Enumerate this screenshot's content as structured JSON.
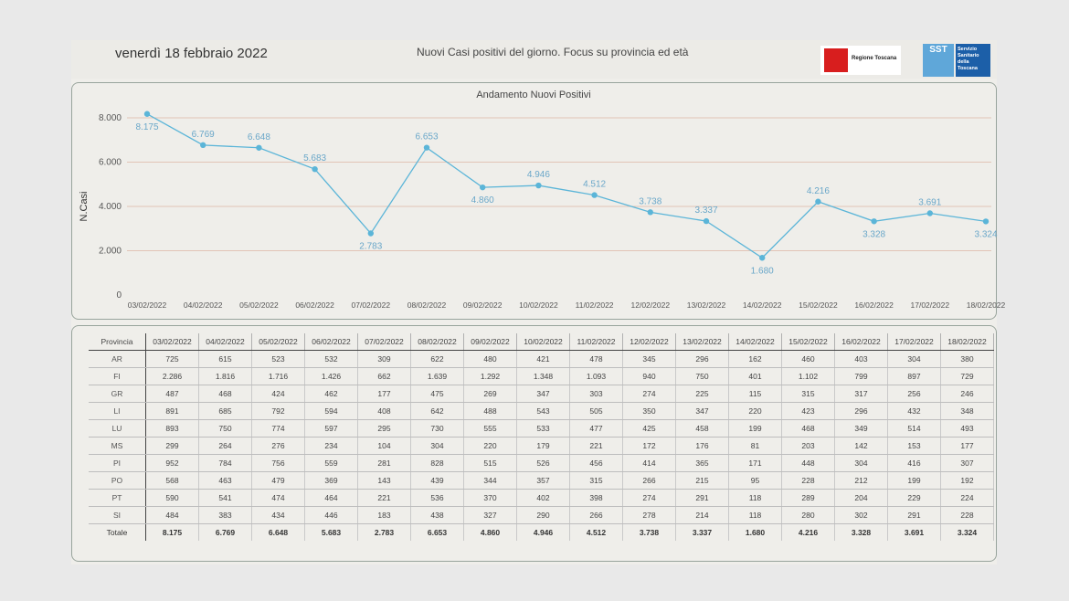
{
  "header": {
    "date": "venerdì 18 febbraio 2022",
    "subtitle": "Nuovi Casi positivi del giorno. Focus su provincia ed età",
    "logo_regione": "Regione Toscana",
    "logo_sst_short": "SST",
    "logo_sst_full": "Servizio Sanitario della Toscana"
  },
  "colors": {
    "line": "#5bb5d8",
    "grid": "#e2c4b6",
    "background": "#efeeea",
    "border": "#98a49c"
  },
  "chart_data": {
    "type": "line",
    "title": "Andamento Nuovi Positivi",
    "ylabel": "N.Casi",
    "xlabel": "",
    "ylim": [
      0,
      8000
    ],
    "yticks": [
      0,
      2000,
      4000,
      6000,
      8000
    ],
    "ytick_labels": [
      "0",
      "2.000",
      "4.000",
      "6.000",
      "8.000"
    ],
    "grid": "horizontal",
    "categories": [
      "03/02/2022",
      "04/02/2022",
      "05/02/2022",
      "06/02/2022",
      "07/02/2022",
      "08/02/2022",
      "09/02/2022",
      "10/02/2022",
      "11/02/2022",
      "12/02/2022",
      "13/02/2022",
      "14/02/2022",
      "15/02/2022",
      "16/02/2022",
      "17/02/2022",
      "18/02/2022"
    ],
    "values": [
      8175,
      6769,
      6648,
      5683,
      2783,
      6653,
      4860,
      4946,
      4512,
      3738,
      3337,
      1680,
      4216,
      3328,
      3691,
      3324
    ],
    "data_labels": [
      "8.175",
      "6.769",
      "6.648",
      "5.683",
      "2.783",
      "6.653",
      "4.860",
      "4.946",
      "4.512",
      "3.738",
      "3.337",
      "1.680",
      "4.216",
      "3.328",
      "3.691",
      "3.324"
    ],
    "label_positions": [
      "below",
      "above",
      "above",
      "above",
      "below",
      "above",
      "below",
      "above",
      "above",
      "above",
      "above",
      "below",
      "above",
      "below",
      "above",
      "below"
    ]
  },
  "table": {
    "header_label": "Provincia",
    "dates": [
      "03/02/2022",
      "04/02/2022",
      "05/02/2022",
      "06/02/2022",
      "07/02/2022",
      "08/02/2022",
      "09/02/2022",
      "10/02/2022",
      "11/02/2022",
      "12/02/2022",
      "13/02/2022",
      "14/02/2022",
      "15/02/2022",
      "16/02/2022",
      "17/02/2022",
      "18/02/2022"
    ],
    "rows": [
      {
        "name": "AR",
        "values": [
          "725",
          "615",
          "523",
          "532",
          "309",
          "622",
          "480",
          "421",
          "478",
          "345",
          "296",
          "162",
          "460",
          "403",
          "304",
          "380"
        ]
      },
      {
        "name": "FI",
        "values": [
          "2.286",
          "1.816",
          "1.716",
          "1.426",
          "662",
          "1.639",
          "1.292",
          "1.348",
          "1.093",
          "940",
          "750",
          "401",
          "1.102",
          "799",
          "897",
          "729"
        ]
      },
      {
        "name": "GR",
        "values": [
          "487",
          "468",
          "424",
          "462",
          "177",
          "475",
          "269",
          "347",
          "303",
          "274",
          "225",
          "115",
          "315",
          "317",
          "256",
          "246"
        ]
      },
      {
        "name": "LI",
        "values": [
          "891",
          "685",
          "792",
          "594",
          "408",
          "642",
          "488",
          "543",
          "505",
          "350",
          "347",
          "220",
          "423",
          "296",
          "432",
          "348"
        ]
      },
      {
        "name": "LU",
        "values": [
          "893",
          "750",
          "774",
          "597",
          "295",
          "730",
          "555",
          "533",
          "477",
          "425",
          "458",
          "199",
          "468",
          "349",
          "514",
          "493"
        ]
      },
      {
        "name": "MS",
        "values": [
          "299",
          "264",
          "276",
          "234",
          "104",
          "304",
          "220",
          "179",
          "221",
          "172",
          "176",
          "81",
          "203",
          "142",
          "153",
          "177"
        ]
      },
      {
        "name": "PI",
        "values": [
          "952",
          "784",
          "756",
          "559",
          "281",
          "828",
          "515",
          "526",
          "456",
          "414",
          "365",
          "171",
          "448",
          "304",
          "416",
          "307"
        ]
      },
      {
        "name": "PO",
        "values": [
          "568",
          "463",
          "479",
          "369",
          "143",
          "439",
          "344",
          "357",
          "315",
          "266",
          "215",
          "95",
          "228",
          "212",
          "199",
          "192"
        ]
      },
      {
        "name": "PT",
        "values": [
          "590",
          "541",
          "474",
          "464",
          "221",
          "536",
          "370",
          "402",
          "398",
          "274",
          "291",
          "118",
          "289",
          "204",
          "229",
          "224"
        ]
      },
      {
        "name": "SI",
        "values": [
          "484",
          "383",
          "434",
          "446",
          "183",
          "438",
          "327",
          "290",
          "266",
          "278",
          "214",
          "118",
          "280",
          "302",
          "291",
          "228"
        ]
      }
    ],
    "total": {
      "name": "Totale",
      "values": [
        "8.175",
        "6.769",
        "6.648",
        "5.683",
        "2.783",
        "6.653",
        "4.860",
        "4.946",
        "4.512",
        "3.738",
        "3.337",
        "1.680",
        "4.216",
        "3.328",
        "3.691",
        "3.324"
      ]
    }
  }
}
